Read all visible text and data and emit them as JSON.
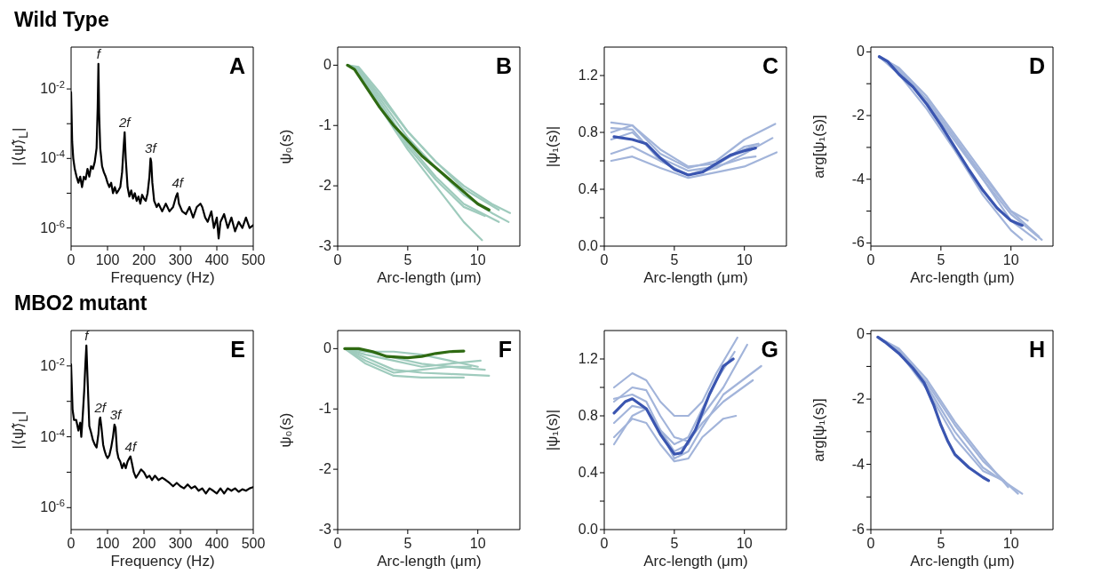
{
  "chart_data": [
    {
      "type": "line",
      "title": "Wild Type",
      "xlabel": "Frequency (Hz)",
      "ylabel": "|⟨ψ̃⟩$_{L}$|",
      "log": "y",
      "xlim": [
        0,
        500
      ],
      "xticks": [
        0,
        100,
        200,
        300,
        400,
        500
      ],
      "ylim": [
        3e-07,
        0.16
      ],
      "yticks": [
        {
          "value": 1e-06,
          "label": "10$^{-6}$"
        },
        {
          "value": 1e-05,
          "label": null
        },
        {
          "value": 0.0001,
          "label": "10$^{-4}$"
        },
        {
          "value": 0.001,
          "label": null
        },
        {
          "value": 0.01,
          "label": "10$^{-2}$"
        }
      ],
      "annotations": [
        "A",
        {
          "text": "f",
          "x": 75,
          "y": 0.053
        },
        {
          "text": "2f",
          "x": 147,
          "y": 0.00057
        },
        {
          "text": "3f",
          "x": 218,
          "y": 0.0001
        },
        {
          "text": "4f",
          "x": 292,
          "y": 1e-05
        }
      ],
      "series": [
        {
          "color": "#000000",
          "x": [
            0,
            3,
            6,
            10,
            15,
            20,
            25,
            30,
            35,
            40,
            45,
            50,
            55,
            60,
            65,
            70,
            73,
            75,
            77,
            80,
            85,
            90,
            95,
            100,
            105,
            110,
            115,
            120,
            125,
            130,
            135,
            140,
            144,
            147,
            150,
            155,
            160,
            165,
            170,
            175,
            180,
            185,
            190,
            195,
            200,
            205,
            210,
            215,
            218,
            220,
            223,
            228,
            235,
            240,
            250,
            260,
            270,
            280,
            288,
            292,
            296,
            305,
            315,
            325,
            335,
            345,
            355,
            360,
            368,
            375,
            385,
            392,
            400,
            405,
            410,
            420,
            430,
            440,
            450,
            460,
            470,
            480,
            490,
            500
          ],
          "values": [
            0.008,
            0.0003,
            0.0001,
            5e-05,
            3e-05,
            2e-05,
            3e-05,
            1.5e-05,
            3e-05,
            2.5e-05,
            5e-05,
            3e-05,
            6e-05,
            5e-05,
            8e-05,
            0.0002,
            0.003,
            0.053,
            0.002,
            0.0002,
            6e-05,
            4e-05,
            3e-05,
            2e-05,
            1.5e-05,
            2e-05,
            1e-05,
            1.5e-05,
            1e-05,
            1.2e-05,
            1.5e-05,
            4e-05,
            0.0002,
            0.00057,
            0.0001,
            1.5e-05,
            8e-06,
            1.2e-05,
            7e-06,
            1e-05,
            6e-06,
            8e-06,
            5e-06,
            9e-06,
            7e-06,
            6e-06,
            1e-05,
            3e-05,
            0.0001,
            8e-05,
            2e-05,
            6e-06,
            4e-06,
            5e-06,
            3e-06,
            5e-06,
            3e-06,
            4e-06,
            8e-06,
            1e-05,
            5e-06,
            3e-06,
            2.5e-06,
            4e-06,
            2e-06,
            4e-06,
            5e-06,
            4e-06,
            2e-06,
            1.5e-06,
            3e-06,
            1e-06,
            2e-06,
            5e-07,
            1.5e-06,
            2.5e-06,
            1e-06,
            2e-06,
            8e-07,
            1.5e-06,
            1e-06,
            2e-06,
            1e-06,
            1.2e-06
          ]
        }
      ]
    },
    {
      "type": "line",
      "xlabel": "Arc-length (μm)",
      "ylabel": "ψ₀(s)",
      "xlim": [
        0,
        13
      ],
      "xticks": [
        0,
        5,
        10
      ],
      "ylim": [
        -3,
        0.3
      ],
      "yticks": [
        -3,
        -2,
        -1,
        0
      ],
      "annotations": [
        "B"
      ],
      "series": [
        {
          "color": "#9fcbbd",
          "x": [
            0.7,
            1.5,
            3,
            5,
            7,
            9,
            10.3
          ],
          "values": [
            0,
            -0.1,
            -0.7,
            -1.4,
            -2.0,
            -2.6,
            -2.9
          ]
        },
        {
          "color": "#9fcbbd",
          "x": [
            0.7,
            1.5,
            3,
            5,
            7,
            9,
            11,
            12.3
          ],
          "values": [
            0,
            -0.05,
            -0.5,
            -1.1,
            -1.6,
            -2.0,
            -2.3,
            -2.45
          ]
        },
        {
          "color": "#9fcbbd",
          "x": [
            0.7,
            1.5,
            3,
            5,
            7,
            9,
            11,
            12.2
          ],
          "values": [
            0,
            -0.05,
            -0.55,
            -1.2,
            -1.7,
            -2.15,
            -2.45,
            -2.6
          ]
        },
        {
          "color": "#9fcbbd",
          "x": [
            0.7,
            1.5,
            3,
            5,
            7,
            9,
            11.5
          ],
          "values": [
            0,
            -0.08,
            -0.6,
            -1.3,
            -1.85,
            -2.3,
            -2.6
          ]
        },
        {
          "color": "#9fcbbd",
          "x": [
            0.7,
            1.5,
            3,
            5,
            7,
            9,
            10.5
          ],
          "values": [
            0,
            -0.05,
            -0.65,
            -1.35,
            -1.9,
            -2.35,
            -2.5
          ]
        },
        {
          "color": "#9fcbbd",
          "x": [
            0.7,
            1.5,
            3,
            5,
            7,
            9,
            11.5
          ],
          "values": [
            0,
            -0.03,
            -0.45,
            -1.1,
            -1.6,
            -2.05,
            -2.4
          ]
        },
        {
          "color": "#2f6a12",
          "x": [
            0.7,
            1.2,
            2,
            3,
            4,
            5,
            6,
            7,
            8,
            9,
            10,
            10.8
          ],
          "values": [
            0,
            -0.07,
            -0.35,
            -0.7,
            -1.0,
            -1.25,
            -1.5,
            -1.7,
            -1.9,
            -2.1,
            -2.3,
            -2.4
          ]
        }
      ]
    },
    {
      "type": "line",
      "xlabel": "Arc-length (μm)",
      "ylabel": "|ψ₁(s)|",
      "xlim": [
        0,
        13
      ],
      "xticks": [
        0,
        5,
        10
      ],
      "ylim": [
        0,
        1.4
      ],
      "yticks": [
        {
          "value": 0,
          "label": "0.0"
        },
        {
          "value": 0.2,
          "label": null
        },
        0.4,
        {
          "value": 0.6,
          "label": null
        },
        0.8,
        {
          "value": 1.0,
          "label": null
        },
        1.2
      ],
      "annotations": [
        "C"
      ],
      "series": [
        {
          "color": "#a2b4da",
          "x": [
            0.5,
            2,
            4,
            6,
            8,
            10,
            12.2
          ],
          "values": [
            0.87,
            0.85,
            0.65,
            0.55,
            0.6,
            0.75,
            0.86
          ]
        },
        {
          "color": "#a2b4da",
          "x": [
            0.5,
            2,
            4,
            6,
            8,
            10,
            12.3
          ],
          "values": [
            0.6,
            0.63,
            0.55,
            0.48,
            0.52,
            0.56,
            0.66
          ]
        },
        {
          "color": "#a2b4da",
          "x": [
            0.5,
            2,
            4,
            6,
            8,
            10,
            12
          ],
          "values": [
            0.65,
            0.7,
            0.6,
            0.5,
            0.55,
            0.65,
            0.76
          ]
        },
        {
          "color": "#a2b4da",
          "x": [
            0.5,
            2,
            4,
            6,
            8,
            10,
            11
          ],
          "values": [
            0.83,
            0.82,
            0.6,
            0.5,
            0.57,
            0.7,
            0.72
          ]
        },
        {
          "color": "#a2b4da",
          "x": [
            0.5,
            2,
            4,
            6,
            8,
            10,
            10.8
          ],
          "values": [
            0.75,
            0.8,
            0.62,
            0.53,
            0.56,
            0.62,
            0.63
          ]
        },
        {
          "color": "#a2b4da",
          "x": [
            0.5,
            2,
            4,
            6,
            8,
            10,
            11
          ],
          "values": [
            0.8,
            0.85,
            0.68,
            0.56,
            0.58,
            0.68,
            0.72
          ]
        },
        {
          "color": "#3a55b0",
          "x": [
            0.7,
            2,
            3,
            4,
            5,
            6,
            7,
            8,
            9,
            10,
            10.8
          ],
          "values": [
            0.77,
            0.75,
            0.72,
            0.62,
            0.54,
            0.5,
            0.52,
            0.58,
            0.64,
            0.67,
            0.69
          ]
        }
      ]
    },
    {
      "type": "line",
      "xlabel": "Arc-length (μm)",
      "ylabel": "arg[ψ₁(s)]",
      "xlim": [
        0,
        13
      ],
      "xticks": [
        0,
        5,
        10
      ],
      "ylim": [
        -6.1,
        0.15
      ],
      "yticks": [
        -6,
        {
          "value": -5,
          "label": null
        },
        -4,
        {
          "value": -3,
          "label": null
        },
        -2,
        {
          "value": -1,
          "label": null
        },
        0
      ],
      "annotations": [
        "D"
      ],
      "series": [
        {
          "color": "#a2b4da",
          "x": [
            0.6,
            2,
            4,
            6,
            8,
            10,
            12.2
          ],
          "values": [
            -0.15,
            -0.6,
            -1.6,
            -2.8,
            -4.0,
            -5.1,
            -5.9
          ]
        },
        {
          "color": "#a2b4da",
          "x": [
            0.6,
            2,
            4,
            6,
            8,
            10,
            11.8
          ],
          "values": [
            -0.15,
            -0.55,
            -1.5,
            -2.7,
            -4.0,
            -5.3,
            -5.9
          ]
        },
        {
          "color": "#a2b4da",
          "x": [
            0.6,
            2,
            4,
            6,
            8,
            10,
            10.8
          ],
          "values": [
            -0.15,
            -0.7,
            -1.8,
            -3.1,
            -4.5,
            -5.6,
            -5.9
          ]
        },
        {
          "color": "#a2b4da",
          "x": [
            0.6,
            2,
            4,
            6,
            8,
            10,
            11.2
          ],
          "values": [
            -0.15,
            -0.5,
            -1.4,
            -2.6,
            -3.8,
            -5.0,
            -5.3
          ]
        },
        {
          "color": "#a2b4da",
          "x": [
            0.6,
            2,
            4,
            6,
            8,
            10,
            12
          ],
          "values": [
            -0.15,
            -0.6,
            -1.5,
            -2.7,
            -3.9,
            -5.0,
            -5.8
          ]
        },
        {
          "color": "#3a55b0",
          "x": [
            0.6,
            1.2,
            2,
            3,
            4,
            5,
            6,
            7,
            8,
            9,
            10,
            10.8
          ],
          "values": [
            -0.15,
            -0.3,
            -0.7,
            -1.1,
            -1.65,
            -2.3,
            -3.0,
            -3.7,
            -4.35,
            -4.9,
            -5.3,
            -5.45
          ]
        }
      ]
    },
    {
      "type": "line",
      "title": "MBO2 mutant",
      "xlabel": "Frequency (Hz)",
      "ylabel": "|⟨ψ̃⟩$_{L}$|",
      "log": "y",
      "xlim": [
        0,
        500
      ],
      "xticks": [
        0,
        100,
        200,
        300,
        400,
        500
      ],
      "ylim": [
        2.4e-07,
        0.1
      ],
      "yticks": [
        {
          "value": 1e-06,
          "label": "10$^{-6}$"
        },
        {
          "value": 1e-05,
          "label": null
        },
        {
          "value": 0.0001,
          "label": "10$^{-4}$"
        },
        {
          "value": 0.001,
          "label": null
        },
        {
          "value": 0.01,
          "label": "10$^{-2}$"
        }
      ],
      "annotations": [
        "E",
        {
          "text": "f",
          "x": 42,
          "y": 0.038
        },
        {
          "text": "2f",
          "x": 80,
          "y": 0.00035
        },
        {
          "text": "3f",
          "x": 122,
          "y": 0.00022
        },
        {
          "text": "4f",
          "x": 163,
          "y": 2.8e-05
        }
      ],
      "series": [
        {
          "color": "#000000",
          "x": [
            0,
            4,
            8,
            14,
            20,
            25,
            28,
            32,
            36,
            39,
            42,
            45,
            50,
            55,
            60,
            65,
            70,
            75,
            78,
            80,
            83,
            88,
            92,
            96,
            100,
            105,
            110,
            115,
            119,
            122,
            126,
            130,
            135,
            140,
            145,
            150,
            155,
            160,
            163,
            167,
            172,
            178,
            185,
            192,
            200,
            208,
            215,
            222,
            230,
            240,
            250,
            260,
            270,
            280,
            290,
            300,
            310,
            320,
            330,
            340,
            350,
            360,
            370,
            380,
            390,
            400,
            410,
            420,
            430,
            440,
            450,
            460,
            470,
            480,
            490,
            500
          ],
          "values": [
            0.011,
            0.0006,
            0.0003,
            0.0003,
            0.00015,
            0.00025,
            0.0001,
            0.0004,
            0.002,
            0.01,
            0.038,
            0.005,
            0.0002,
            0.00013,
            8e-05,
            6e-05,
            5e-05,
            0.00012,
            0.0003,
            0.00035,
            0.0002,
            6e-05,
            4e-05,
            3e-05,
            2.5e-05,
            3e-05,
            5e-05,
            0.0001,
            0.00022,
            0.00018,
            4e-05,
            2.5e-05,
            2e-05,
            1.3e-05,
            1.8e-05,
            1.3e-05,
            2e-05,
            2.5e-05,
            2.8e-05,
            1.8e-05,
            1e-05,
            7e-06,
            9e-06,
            1.2e-05,
            1e-05,
            7e-06,
            8e-06,
            6e-06,
            8e-06,
            6e-06,
            7e-06,
            6e-06,
            5e-06,
            4e-06,
            5e-06,
            4e-06,
            3.5e-06,
            4.5e-06,
            3.5e-06,
            4e-06,
            3e-06,
            3.5e-06,
            2.5e-06,
            3.5e-06,
            3e-06,
            2.5e-06,
            3.5e-06,
            2.5e-06,
            3.5e-06,
            3e-06,
            3.5e-06,
            2.8e-06,
            3.3e-06,
            3e-06,
            3.5e-06,
            3.8e-06
          ]
        }
      ]
    },
    {
      "type": "line",
      "xlabel": "Arc-length (μm)",
      "ylabel": "ψ₀(s)",
      "xlim": [
        0,
        13
      ],
      "xticks": [
        0,
        5,
        10
      ],
      "ylim": [
        -3,
        0.3
      ],
      "yticks": [
        -3,
        -2,
        -1,
        0
      ],
      "annotations": [
        "F"
      ],
      "series": [
        {
          "color": "#9fcbbd",
          "x": [
            0.5,
            2,
            4,
            6,
            8,
            10.8
          ],
          "values": [
            0,
            -0.15,
            -0.35,
            -0.4,
            -0.42,
            -0.45
          ]
        },
        {
          "color": "#9fcbbd",
          "x": [
            0.5,
            2,
            4,
            6,
            8,
            10.2
          ],
          "values": [
            0,
            -0.1,
            -0.2,
            -0.3,
            -0.25,
            -0.2
          ]
        },
        {
          "color": "#9fcbbd",
          "x": [
            0.5,
            2,
            4,
            6,
            8,
            9
          ],
          "values": [
            0,
            -0.25,
            -0.45,
            -0.48,
            -0.48,
            -0.48
          ]
        },
        {
          "color": "#9fcbbd",
          "x": [
            0.5,
            2,
            4,
            6,
            8,
            10
          ],
          "values": [
            0,
            -0.05,
            -0.05,
            -0.1,
            -0.2,
            -0.3
          ]
        },
        {
          "color": "#9fcbbd",
          "x": [
            0.5,
            2,
            4,
            6,
            8,
            10.5
          ],
          "values": [
            0,
            -0.2,
            -0.4,
            -0.35,
            -0.3,
            -0.35
          ]
        },
        {
          "color": "#9fcbbd",
          "x": [
            0.5,
            2,
            4,
            6,
            8,
            9.5
          ],
          "values": [
            0,
            -0.05,
            -0.15,
            -0.25,
            -0.3,
            -0.3
          ]
        },
        {
          "color": "#2f6a12",
          "x": [
            0.5,
            1.5,
            2.5,
            3.5,
            5,
            6,
            7,
            8,
            9
          ],
          "values": [
            0,
            0,
            -0.05,
            -0.13,
            -0.15,
            -0.13,
            -0.08,
            -0.05,
            -0.04
          ]
        }
      ]
    },
    {
      "type": "line",
      "xlabel": "Arc-length (μm)",
      "ylabel": "|ψ₁(s)|",
      "xlim": [
        0,
        13
      ],
      "xticks": [
        0,
        5,
        10
      ],
      "ylim": [
        0,
        1.4
      ],
      "yticks": [
        {
          "value": 0,
          "label": "0.0"
        },
        {
          "value": 0.2,
          "label": null
        },
        0.4,
        {
          "value": 0.6,
          "label": null
        },
        0.8,
        {
          "value": 1.0,
          "label": null
        },
        1.2
      ],
      "annotations": [
        "G"
      ],
      "series": [
        {
          "color": "#a2b4da",
          "x": [
            0.7,
            2,
            3,
            4,
            5,
            6,
            7,
            8,
            9.5
          ],
          "values": [
            1.0,
            1.1,
            1.05,
            0.9,
            0.8,
            0.8,
            0.9,
            1.1,
            1.35
          ]
        },
        {
          "color": "#a2b4da",
          "x": [
            0.7,
            2,
            3,
            4,
            5,
            6,
            7,
            8.5,
            10.2
          ],
          "values": [
            0.6,
            0.8,
            0.85,
            0.7,
            0.55,
            0.6,
            0.8,
            1.0,
            1.3
          ]
        },
        {
          "color": "#a2b4da",
          "x": [
            0.7,
            2,
            3,
            4,
            5,
            6,
            7,
            8.5,
            10.6
          ],
          "values": [
            0.9,
            1.0,
            0.98,
            0.8,
            0.65,
            0.62,
            0.75,
            0.9,
            1.05
          ]
        },
        {
          "color": "#a2b4da",
          "x": [
            0.7,
            2,
            3,
            4,
            5,
            6,
            7,
            8.5,
            9.4
          ],
          "values": [
            0.65,
            0.78,
            0.75,
            0.6,
            0.48,
            0.5,
            0.65,
            0.78,
            0.8
          ]
        },
        {
          "color": "#a2b4da",
          "x": [
            0.7,
            2,
            3,
            4,
            5,
            6,
            7,
            8.5,
            11.2
          ],
          "values": [
            0.92,
            0.95,
            0.9,
            0.7,
            0.5,
            0.55,
            0.72,
            0.95,
            1.15
          ]
        },
        {
          "color": "#a2b4da",
          "x": [
            0.7,
            2,
            3,
            4,
            5,
            6,
            7,
            8,
            9.3
          ],
          "values": [
            0.75,
            0.87,
            0.85,
            0.7,
            0.6,
            0.65,
            0.85,
            1.05,
            1.25
          ]
        },
        {
          "color": "#3a55b0",
          "x": [
            0.7,
            1.5,
            2,
            3,
            4,
            5,
            5.5,
            6.5,
            7.5,
            8.5,
            9.2
          ],
          "values": [
            0.82,
            0.9,
            0.92,
            0.85,
            0.67,
            0.53,
            0.54,
            0.7,
            0.95,
            1.15,
            1.2
          ]
        }
      ]
    },
    {
      "type": "line",
      "xlabel": "Arc-length (μm)",
      "ylabel": "arg[ψ₁(s)]",
      "xlim": [
        0,
        13
      ],
      "xticks": [
        0,
        5,
        10
      ],
      "ylim": [
        -6,
        0.1
      ],
      "yticks": [
        -6,
        {
          "value": -5,
          "label": null
        },
        -4,
        {
          "value": -3,
          "label": null
        },
        -2,
        {
          "value": -1,
          "label": null
        },
        0
      ],
      "annotations": [
        "H"
      ],
      "series": [
        {
          "color": "#a2b4da",
          "x": [
            0.5,
            2,
            4,
            6,
            8,
            10.8
          ],
          "values": [
            -0.1,
            -0.5,
            -1.6,
            -3.0,
            -4.1,
            -4.9
          ]
        },
        {
          "color": "#a2b4da",
          "x": [
            0.5,
            2,
            4,
            6,
            8,
            10.5
          ],
          "values": [
            -0.1,
            -0.5,
            -1.5,
            -2.8,
            -3.9,
            -4.9
          ]
        },
        {
          "color": "#a2b4da",
          "x": [
            0.5,
            2,
            4,
            6,
            8,
            9.5
          ],
          "values": [
            -0.1,
            -0.55,
            -1.7,
            -3.2,
            -4.2,
            -4.5
          ]
        },
        {
          "color": "#a2b4da",
          "x": [
            0.5,
            2,
            4,
            6,
            8,
            9.8
          ],
          "values": [
            -0.1,
            -0.45,
            -1.4,
            -2.7,
            -3.8,
            -4.7
          ]
        },
        {
          "color": "#3a55b0",
          "x": [
            0.5,
            1,
            2,
            3,
            3.8,
            4.5,
            5,
            5.5,
            6,
            7,
            8,
            8.4
          ],
          "values": [
            -0.1,
            -0.25,
            -0.6,
            -1.05,
            -1.5,
            -2.2,
            -2.8,
            -3.3,
            -3.7,
            -4.1,
            -4.4,
            -4.5
          ]
        }
      ]
    }
  ]
}
